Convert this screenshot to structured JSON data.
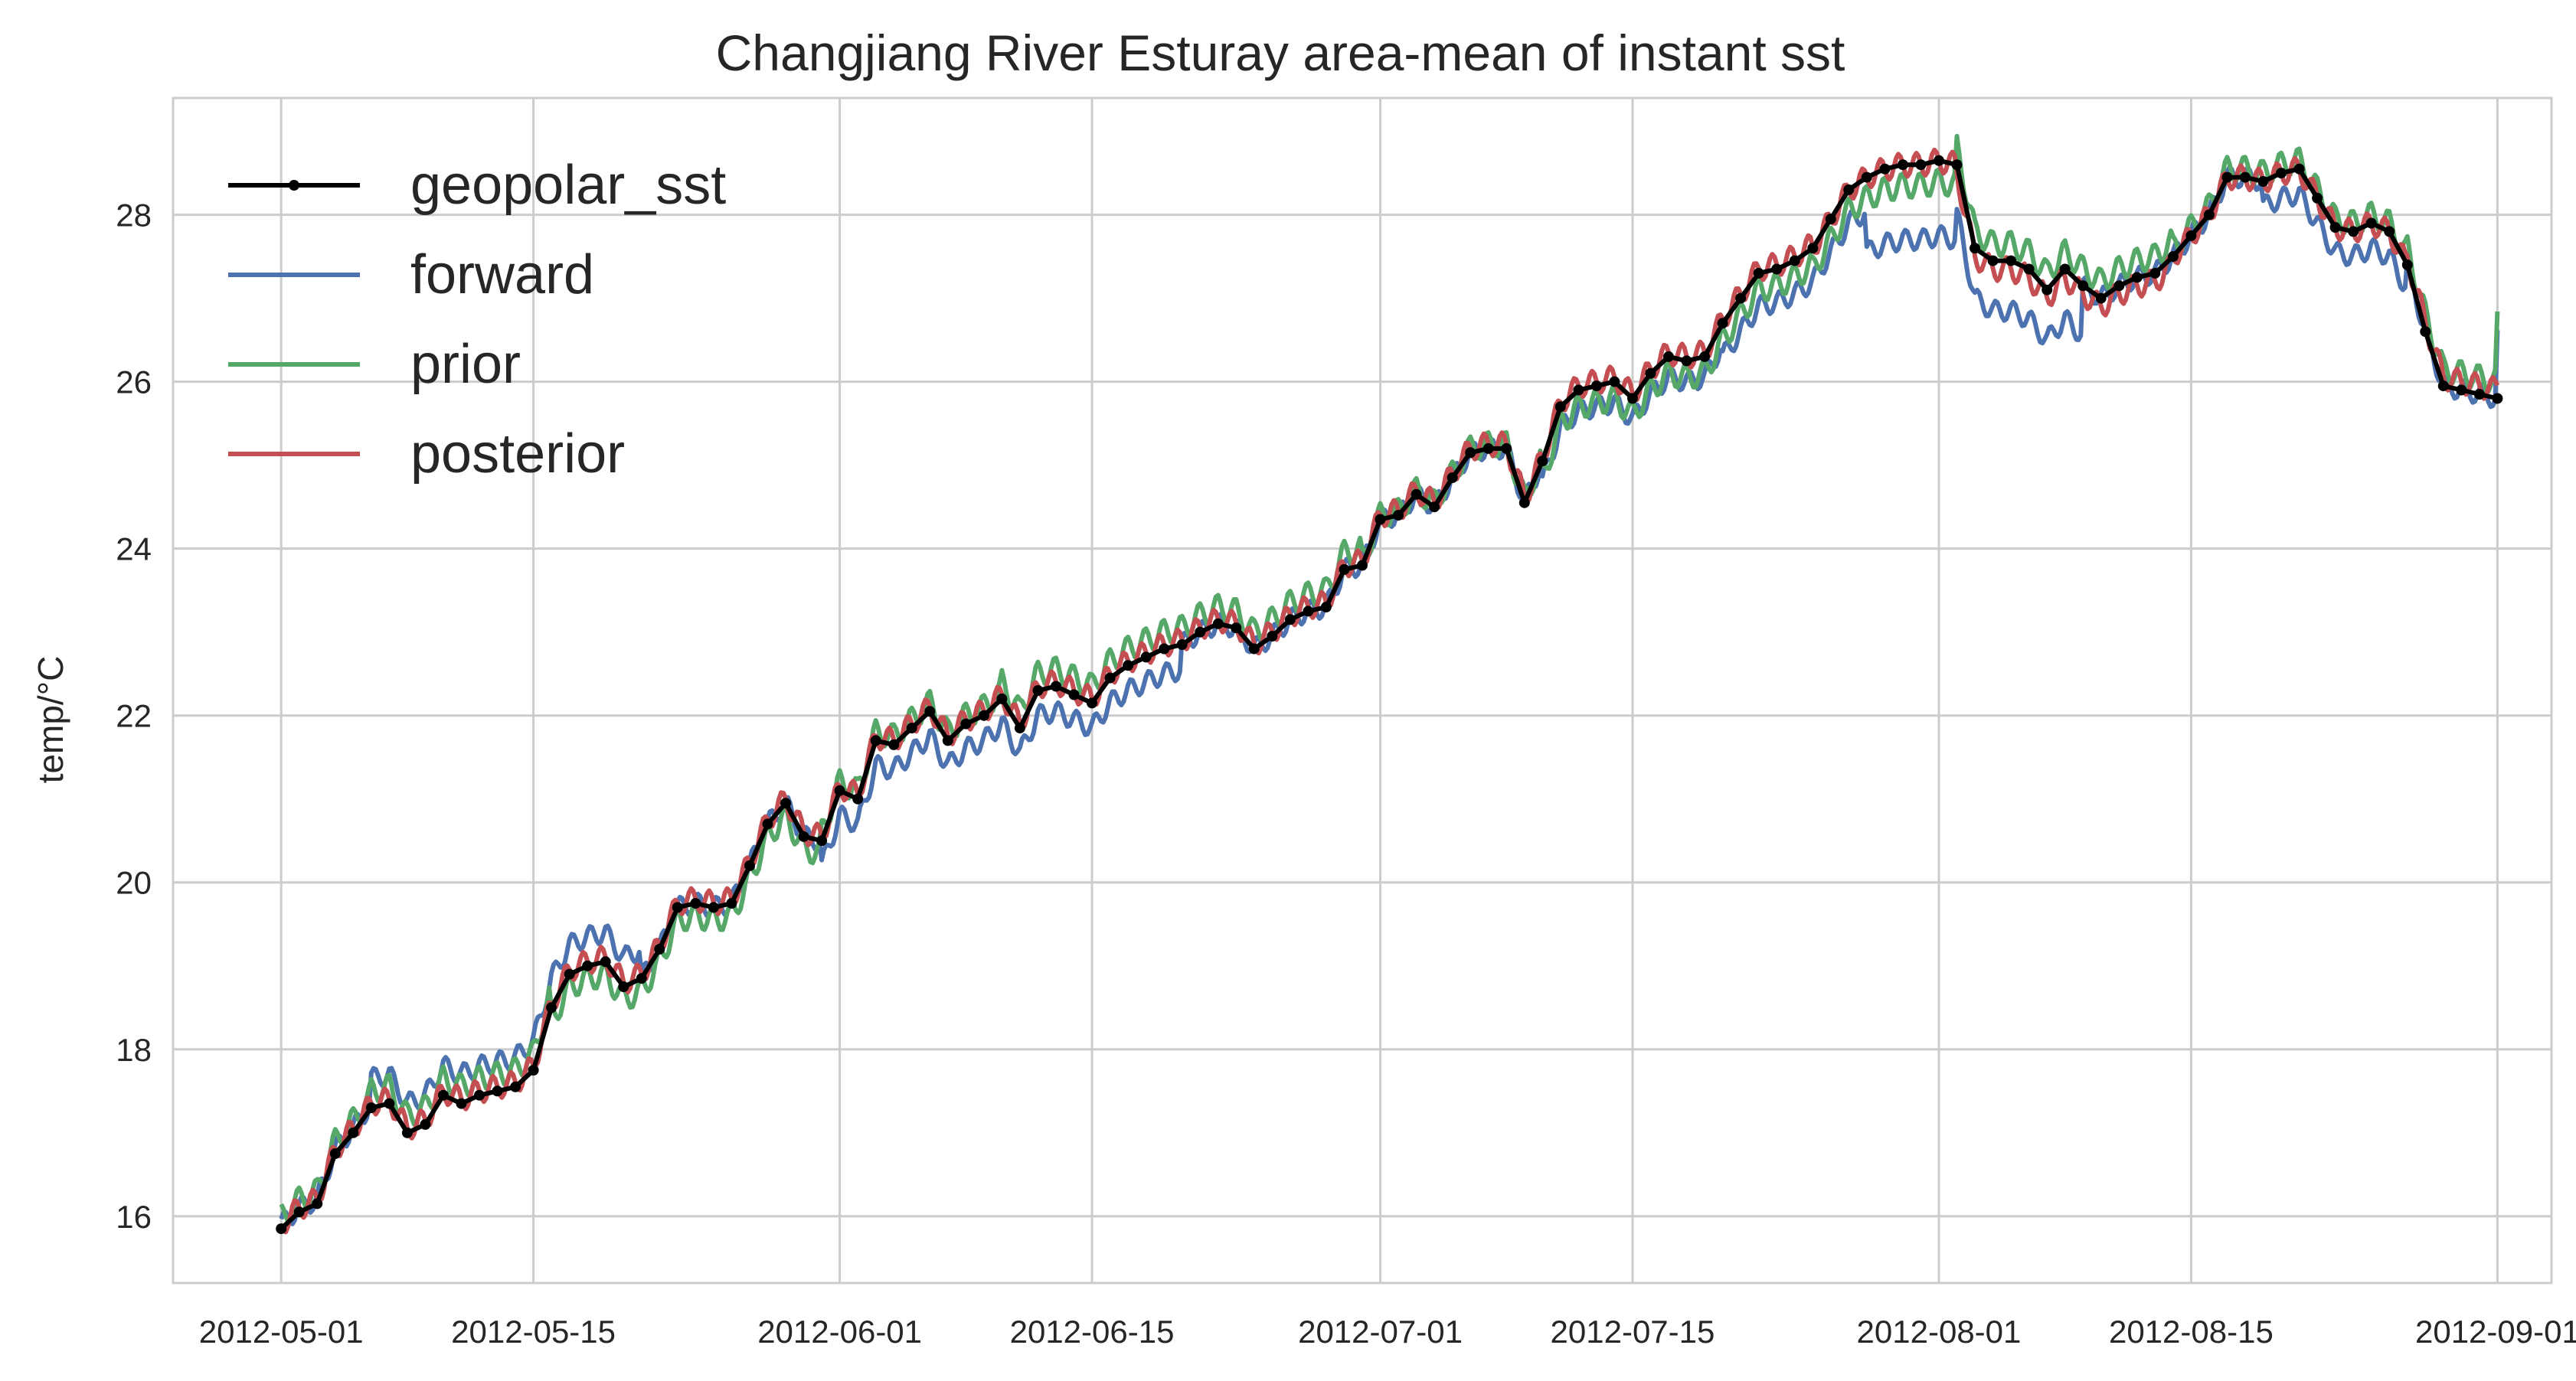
{
  "chart_data": {
    "type": "line",
    "title": "Changjiang River Esturay area-mean of instant sst",
    "xlabel": "",
    "ylabel": "temp/°C",
    "x_axis": "date",
    "xlim": [
      "2012-04-25",
      "2012-09-04"
    ],
    "ylim": [
      15.2,
      29.4
    ],
    "xticks": [
      "2012-05-01",
      "2012-05-15",
      "2012-06-01",
      "2012-06-15",
      "2012-07-01",
      "2012-07-15",
      "2012-08-01",
      "2012-08-15",
      "2012-09-01"
    ],
    "yticks": [
      16,
      18,
      20,
      22,
      24,
      26,
      28
    ],
    "grid": true,
    "legend_position": "top-left",
    "series": [
      {
        "name": "geopolar_sst",
        "color": "#000000",
        "marker": "dot",
        "x": [
          "2012-05-01",
          "2012-05-02",
          "2012-05-03",
          "2012-05-04",
          "2012-05-05",
          "2012-05-06",
          "2012-05-07",
          "2012-05-08",
          "2012-05-09",
          "2012-05-10",
          "2012-05-11",
          "2012-05-12",
          "2012-05-13",
          "2012-05-14",
          "2012-05-15",
          "2012-05-16",
          "2012-05-17",
          "2012-05-18",
          "2012-05-19",
          "2012-05-20",
          "2012-05-21",
          "2012-05-22",
          "2012-05-23",
          "2012-05-24",
          "2012-05-25",
          "2012-05-26",
          "2012-05-27",
          "2012-05-28",
          "2012-05-29",
          "2012-05-30",
          "2012-05-31",
          "2012-06-01",
          "2012-06-02",
          "2012-06-03",
          "2012-06-04",
          "2012-06-05",
          "2012-06-06",
          "2012-06-07",
          "2012-06-08",
          "2012-06-09",
          "2012-06-10",
          "2012-06-11",
          "2012-06-12",
          "2012-06-13",
          "2012-06-14",
          "2012-06-15",
          "2012-06-16",
          "2012-06-17",
          "2012-06-18",
          "2012-06-19",
          "2012-06-20",
          "2012-06-21",
          "2012-06-22",
          "2012-06-23",
          "2012-06-24",
          "2012-06-25",
          "2012-06-26",
          "2012-06-27",
          "2012-06-28",
          "2012-06-29",
          "2012-06-30",
          "2012-07-01",
          "2012-07-02",
          "2012-07-03",
          "2012-07-04",
          "2012-07-05",
          "2012-07-06",
          "2012-07-07",
          "2012-07-08",
          "2012-07-09",
          "2012-07-10",
          "2012-07-11",
          "2012-07-12",
          "2012-07-13",
          "2012-07-14",
          "2012-07-15",
          "2012-07-16",
          "2012-07-17",
          "2012-07-18",
          "2012-07-19",
          "2012-07-20",
          "2012-07-21",
          "2012-07-22",
          "2012-07-23",
          "2012-07-24",
          "2012-07-25",
          "2012-07-26",
          "2012-07-27",
          "2012-07-28",
          "2012-07-29",
          "2012-07-30",
          "2012-07-31",
          "2012-08-01",
          "2012-08-02",
          "2012-08-03",
          "2012-08-04",
          "2012-08-05",
          "2012-08-06",
          "2012-08-07",
          "2012-08-08",
          "2012-08-09",
          "2012-08-10",
          "2012-08-11",
          "2012-08-12",
          "2012-08-13",
          "2012-08-14",
          "2012-08-15",
          "2012-08-16",
          "2012-08-17",
          "2012-08-18",
          "2012-08-19",
          "2012-08-20",
          "2012-08-21",
          "2012-08-22",
          "2012-08-23",
          "2012-08-24",
          "2012-08-25",
          "2012-08-26",
          "2012-08-27",
          "2012-08-28",
          "2012-08-29",
          "2012-08-30",
          "2012-08-31",
          "2012-09-01"
        ],
        "values": [
          15.85,
          16.05,
          16.15,
          16.75,
          17.0,
          17.3,
          17.35,
          17.0,
          17.1,
          17.45,
          17.35,
          17.45,
          17.5,
          17.55,
          17.75,
          18.5,
          18.9,
          19.0,
          19.05,
          18.75,
          18.85,
          19.2,
          19.7,
          19.75,
          19.7,
          19.75,
          20.2,
          20.7,
          20.95,
          20.55,
          20.5,
          21.1,
          21.0,
          21.7,
          21.65,
          21.85,
          22.05,
          21.7,
          21.9,
          22.0,
          22.2,
          21.85,
          22.3,
          22.35,
          22.25,
          22.15,
          22.45,
          22.6,
          22.7,
          22.8,
          22.85,
          23.0,
          23.1,
          23.05,
          22.8,
          22.95,
          23.15,
          23.25,
          23.3,
          23.75,
          23.8,
          24.35,
          24.4,
          24.65,
          24.5,
          24.85,
          25.15,
          25.2,
          25.2,
          24.55,
          25.05,
          25.7,
          25.9,
          25.95,
          26.0,
          25.8,
          26.1,
          26.3,
          26.25,
          26.3,
          26.7,
          27.0,
          27.3,
          27.35,
          27.45,
          27.6,
          27.95,
          28.3,
          28.45,
          28.55,
          28.6,
          28.6,
          28.65,
          28.6,
          27.6,
          27.45,
          27.45,
          27.35,
          27.1,
          27.35,
          27.15,
          27.0,
          27.15,
          27.25,
          27.3,
          27.5,
          27.75,
          28.0,
          28.45,
          28.45,
          28.4,
          28.5,
          28.55,
          28.2,
          27.85,
          27.8,
          27.9,
          27.8,
          27.4,
          26.6,
          25.95,
          25.9,
          25.85,
          25.8
        ]
      },
      {
        "name": "forward",
        "color": "#4C72B0"
      },
      {
        "name": "prior",
        "color": "#55A868"
      },
      {
        "name": "posterior",
        "color": "#C44E52"
      }
    ]
  }
}
